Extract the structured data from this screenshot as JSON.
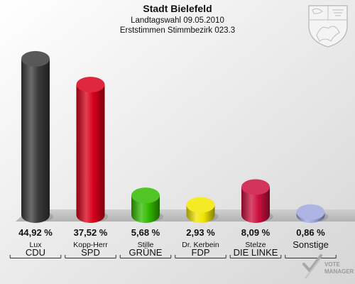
{
  "header": {
    "title": "Stadt Bielefeld",
    "subtitle1": "Landtagswahl 09.05.2010",
    "subtitle2": "Erststimmen Stimmbezirk 023.3"
  },
  "watermark": {
    "line1": "VOTE",
    "line2": "MANAGER"
  },
  "chart_data": {
    "type": "bar",
    "categories": [
      "CDU",
      "SPD",
      "GRÜNE",
      "FDP",
      "DIE LINKE",
      "Sonstige"
    ],
    "candidates": [
      "Lux",
      "Kopp-Herr",
      "Stille",
      "Dr. Kerbein",
      "Stelze",
      ""
    ],
    "values": [
      44.92,
      37.52,
      5.68,
      2.93,
      8.09,
      0.86
    ],
    "value_labels": [
      "44,92 %",
      "37,52 %",
      "5,68 %",
      "2,93 %",
      "8,09 %",
      "0,86 %"
    ],
    "colors": [
      "#3a3a3a",
      "#d8001a",
      "#33bb00",
      "#f2e600",
      "#cc0f3f",
      "#a0a8e0"
    ],
    "ylim": [
      0,
      50
    ],
    "grid": false,
    "legend": "none"
  }
}
